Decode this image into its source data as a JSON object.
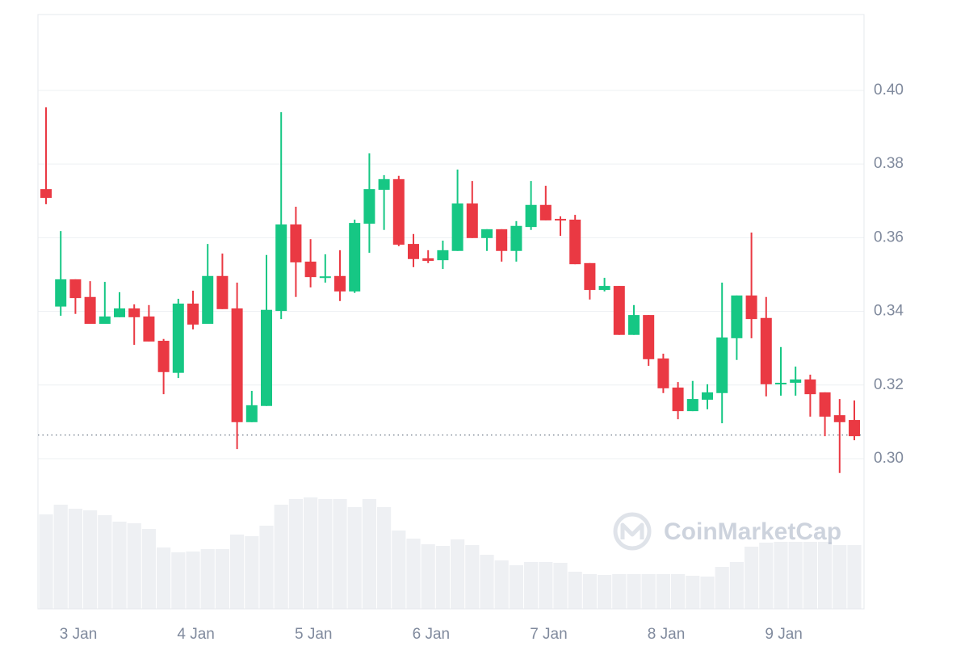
{
  "chart_data": {
    "type": "candlestick",
    "x": [
      0,
      1,
      2,
      3,
      4,
      5,
      6,
      7,
      8,
      9,
      10,
      11,
      12,
      13,
      14,
      15,
      16,
      17,
      18,
      19,
      20,
      21,
      22,
      23,
      24,
      25,
      26,
      27,
      28,
      29,
      30,
      31,
      32,
      33,
      34,
      35,
      36,
      37,
      38,
      39,
      40,
      41,
      42,
      43,
      44,
      45,
      46,
      47,
      48,
      49,
      50,
      51,
      52,
      53,
      54,
      55
    ],
    "open": [
      0.3732,
      0.3413,
      0.3487,
      0.3439,
      0.3366,
      0.3384,
      0.3408,
      0.3386,
      0.332,
      0.3233,
      0.3421,
      0.3366,
      0.3496,
      0.3408,
      0.3099,
      0.3143,
      0.3401,
      0.3636,
      0.3535,
      0.3493,
      0.3496,
      0.3454,
      0.3638,
      0.373,
      0.3759,
      0.3583,
      0.3544,
      0.3539,
      0.3564,
      0.3693,
      0.3599,
      0.3623,
      0.3564,
      0.3629,
      0.3689,
      0.3651,
      0.3649,
      0.3531,
      0.3458,
      0.3469,
      0.3336,
      0.339,
      0.3272,
      0.3193,
      0.3129,
      0.316,
      0.3178,
      0.3327,
      0.3443,
      0.3382,
      0.3202,
      0.3206,
      0.3215,
      0.318,
      0.3118,
      0.3105
    ],
    "high": [
      0.3954,
      0.3618,
      0.3487,
      0.3482,
      0.348,
      0.3452,
      0.3419,
      0.3417,
      0.3325,
      0.3434,
      0.3456,
      0.3583,
      0.3557,
      0.3478,
      0.3184,
      0.3553,
      0.3941,
      0.3684,
      0.3596,
      0.3555,
      0.3566,
      0.3649,
      0.3829,
      0.377,
      0.3768,
      0.361,
      0.3566,
      0.3592,
      0.3785,
      0.3754,
      0.3623,
      0.3623,
      0.3645,
      0.3754,
      0.3741,
      0.3658,
      0.3662,
      0.3531,
      0.3491,
      0.3469,
      0.3417,
      0.339,
      0.3285,
      0.3208,
      0.3211,
      0.3202,
      0.3478,
      0.3443,
      0.3614,
      0.3439,
      0.3303,
      0.325,
      0.3228,
      0.318,
      0.3162,
      0.3158
    ],
    "low": [
      0.3691,
      0.3388,
      0.3393,
      0.3366,
      0.3366,
      0.3384,
      0.3309,
      0.3318,
      0.3175,
      0.3219,
      0.3351,
      0.3366,
      0.3406,
      0.3026,
      0.3099,
      0.3143,
      0.3379,
      0.3439,
      0.3465,
      0.3478,
      0.3428,
      0.345,
      0.3559,
      0.3621,
      0.3577,
      0.352,
      0.3531,
      0.3515,
      0.3564,
      0.3599,
      0.3564,
      0.3535,
      0.3535,
      0.3621,
      0.3647,
      0.3605,
      0.3528,
      0.3432,
      0.3454,
      0.3336,
      0.3336,
      0.3252,
      0.3178,
      0.3107,
      0.3129,
      0.3134,
      0.3096,
      0.3268,
      0.3327,
      0.3169,
      0.3171,
      0.3171,
      0.3114,
      0.3061,
      0.2961,
      0.305
    ],
    "close": [
      0.3708,
      0.3487,
      0.3436,
      0.3366,
      0.3386,
      0.3408,
      0.3384,
      0.3318,
      0.3235,
      0.3421,
      0.3364,
      0.3496,
      0.3406,
      0.3099,
      0.3145,
      0.3404,
      0.3636,
      0.3533,
      0.3493,
      0.3495,
      0.3454,
      0.364,
      0.3732,
      0.3759,
      0.3581,
      0.3542,
      0.3537,
      0.3566,
      0.3693,
      0.3599,
      0.3623,
      0.3564,
      0.3632,
      0.3689,
      0.3647,
      0.3649,
      0.3528,
      0.3458,
      0.3469,
      0.3336,
      0.339,
      0.327,
      0.3191,
      0.3129,
      0.3162,
      0.318,
      0.3329,
      0.3443,
      0.3379,
      0.3202,
      0.3206,
      0.3215,
      0.3175,
      0.3114,
      0.3099,
      0.3061
    ],
    "volume": [
      117,
      129,
      124,
      122,
      116,
      108,
      106,
      99,
      76,
      70,
      71,
      74,
      74,
      92,
      90,
      103,
      129,
      136,
      138,
      136,
      136,
      126,
      136,
      126,
      97,
      87,
      80,
      78,
      86,
      79,
      67,
      60,
      54,
      58,
      58,
      57,
      46,
      43,
      42,
      43,
      43,
      43,
      43,
      43,
      41,
      40,
      52,
      58,
      77,
      82,
      83,
      83,
      83,
      83,
      79,
      79
    ],
    "volume_lim": [
      0,
      160
    ],
    "last_price": 0.3064,
    "up_color": "#16c784",
    "down_color": "#ea3943",
    "volume_color": "#eef0f3",
    "last_price_color": "#8a939f",
    "xlim": [
      -0.55,
      55.66
    ],
    "xticks": [
      {
        "value": 2.2,
        "label": "3 Jan"
      },
      {
        "value": 10.2,
        "label": "4 Jan"
      },
      {
        "value": 18.2,
        "label": "5 Jan"
      },
      {
        "value": 26.2,
        "label": "6 Jan"
      },
      {
        "value": 34.2,
        "label": "7 Jan"
      },
      {
        "value": 42.2,
        "label": "8 Jan"
      },
      {
        "value": 50.2,
        "label": "9 Jan"
      }
    ],
    "ylim": [
      0.2592,
      0.4206
    ],
    "yticks": [
      {
        "value": 0.3,
        "label": "0.30"
      },
      {
        "value": 0.32,
        "label": "0.32"
      },
      {
        "value": 0.34,
        "label": "0.34"
      },
      {
        "value": 0.36,
        "label": "0.36"
      },
      {
        "value": 0.38,
        "label": "0.38"
      },
      {
        "value": 0.4,
        "label": "0.40"
      }
    ],
    "grid": true,
    "watermark": "CoinMarketCap"
  }
}
